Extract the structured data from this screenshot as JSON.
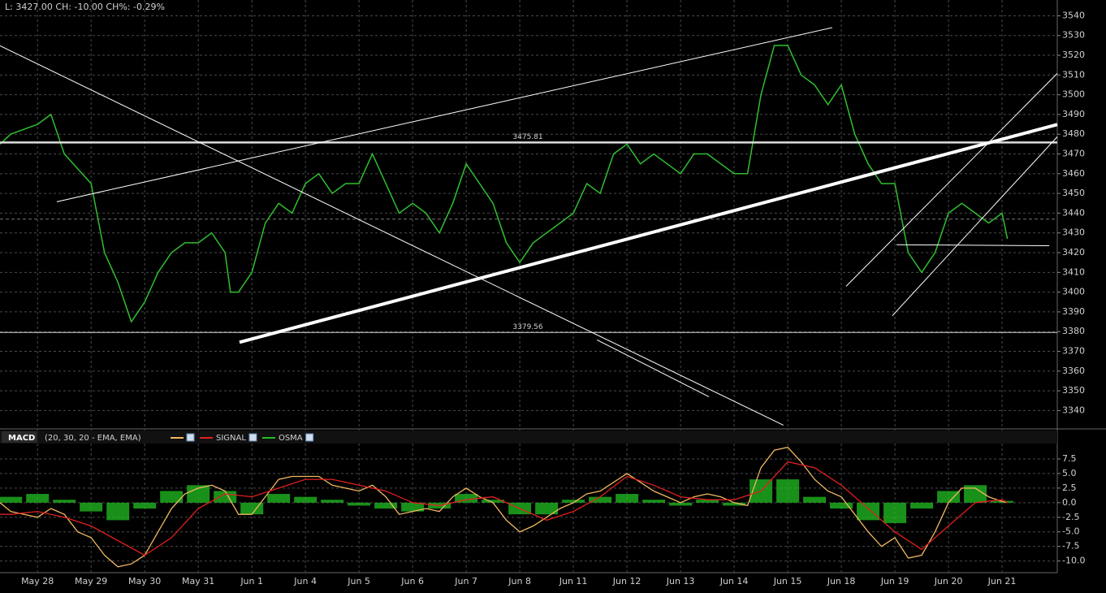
{
  "header": {
    "quote": "L: 3427.00 CH: -10.00 CH%: -0.29%"
  },
  "chart_data": [
    {
      "type": "line",
      "xlim": [
        -0.7,
        19.03
      ],
      "xticks": [
        {
          "value": 0,
          "label": "May 28"
        },
        {
          "value": 1,
          "label": "May 29"
        },
        {
          "value": 2,
          "label": "May 30"
        },
        {
          "value": 3,
          "label": "May 31"
        },
        {
          "value": 4,
          "label": "Jun 1"
        },
        {
          "value": 5,
          "label": "Jun 4"
        },
        {
          "value": 6,
          "label": "Jun 5"
        },
        {
          "value": 7,
          "label": "Jun 6"
        },
        {
          "value": 8,
          "label": "Jun 7"
        },
        {
          "value": 9,
          "label": "Jun 8"
        },
        {
          "value": 10,
          "label": "Jun 11"
        },
        {
          "value": 11,
          "label": "Jun 12"
        },
        {
          "value": 12,
          "label": "Jun 13"
        },
        {
          "value": 13,
          "label": "Jun 14"
        },
        {
          "value": 14,
          "label": "Jun 15"
        },
        {
          "value": 15,
          "label": "Jun 18"
        },
        {
          "value": 16,
          "label": "Jun 19"
        },
        {
          "value": 17,
          "label": "Jun 20"
        },
        {
          "value": 18,
          "label": "Jun 21"
        }
      ],
      "ylim": [
        3334,
        3548
      ],
      "yticks": [
        3340,
        3350,
        3360,
        3370,
        3380,
        3390,
        3400,
        3410,
        3420,
        3430,
        3440,
        3450,
        3460,
        3470,
        3480,
        3490,
        3500,
        3510,
        3520,
        3530,
        3540
      ],
      "grid": true,
      "series": [
        {
          "color": "#2fbf2f",
          "x": [
            -0.7,
            -0.5,
            0,
            0.25,
            0.5,
            1,
            1.25,
            1.5,
            1.75,
            2,
            2.25,
            2.5,
            2.75,
            3,
            3.25,
            3.5,
            3.6,
            3.75,
            4,
            4.25,
            4.5,
            4.75,
            5,
            5.25,
            5.5,
            5.75,
            6,
            6.25,
            6.5,
            6.75,
            7,
            7.25,
            7.5,
            7.75,
            8,
            8.25,
            8.5,
            8.75,
            9,
            9.25,
            9.5,
            9.75,
            10,
            10.25,
            10.5,
            10.75,
            11,
            11.25,
            11.5,
            11.75,
            12,
            12.25,
            12.5,
            12.75,
            13,
            13.25,
            13.5,
            13.75,
            14,
            14.25,
            14.5,
            14.75,
            15,
            15.25,
            15.5,
            15.75,
            16,
            16.25,
            16.5,
            16.75,
            17,
            17.25,
            17.5,
            17.75,
            18,
            18.1
          ],
          "values": [
            3475,
            3480,
            3485,
            3490,
            3470,
            3455,
            3420,
            3405,
            3385,
            3395,
            3410,
            3420,
            3425,
            3425,
            3430,
            3420,
            3400,
            3400,
            3410,
            3435,
            3445,
            3440,
            3455,
            3460,
            3450,
            3455,
            3455,
            3470,
            3455,
            3440,
            3445,
            3440,
            3430,
            3445,
            3465,
            3455,
            3445,
            3425,
            3415,
            3425,
            3430,
            3435,
            3440,
            3455,
            3450,
            3470,
            3475,
            3465,
            3470,
            3465,
            3460,
            3470,
            3470,
            3465,
            3460,
            3460,
            3500,
            3525,
            3525,
            3510,
            3505,
            3495,
            3505,
            3480,
            3465,
            3455,
            3455,
            3420,
            3410,
            3420,
            3440,
            3445,
            3440,
            3435,
            3440,
            3427
          ]
        }
      ],
      "hlines": [
        3475.81,
        3379.56
      ],
      "reference_line": 3437,
      "trendlines": [
        {
          "x": [
            0.36,
            14.83
          ],
          "y": [
            3445.8,
            3534
          ]
        },
        {
          "x": [
            3.77,
            19.03
          ],
          "y": [
            3374.6,
            3484.9
          ],
          "bold": true
        },
        {
          "x": [
            -0.7,
            13.92
          ],
          "y": [
            3524.8,
            3332.6
          ]
        },
        {
          "x": [
            10.44,
            12.53
          ],
          "y": [
            3375.8,
            3347
          ]
        },
        {
          "x": [
            15.09,
            19.03
          ],
          "y": [
            3403,
            3510.8
          ]
        },
        {
          "x": [
            15.95,
            19.03
          ],
          "y": [
            3388,
            3478.7
          ]
        },
        {
          "x": [
            16.03,
            18.88
          ],
          "y": [
            3424,
            3423.5
          ]
        }
      ]
    },
    {
      "type": "macd",
      "title": "MACD",
      "params": "(20, 30, 20 - EMA, EMA)",
      "xlim": [
        -0.7,
        19.03
      ],
      "ylim": [
        -12,
        10
      ],
      "yticks": [
        7.5,
        {
          "value": 5,
          "label": "5.0"
        },
        2.5,
        {
          "value": 0,
          "label": "0.0"
        },
        -2.5,
        {
          "value": -5,
          "label": "-5.0"
        },
        -7.5,
        {
          "value": -10,
          "label": "-10.0"
        }
      ],
      "series": [
        {
          "color": "#f0b860",
          "type": "line",
          "x": [
            -0.7,
            -0.5,
            0,
            0.25,
            0.5,
            0.75,
            1,
            1.25,
            1.5,
            1.75,
            2,
            2.25,
            2.5,
            2.75,
            3,
            3.25,
            3.5,
            3.75,
            4,
            4.25,
            4.5,
            4.75,
            5,
            5.25,
            5.5,
            5.75,
            6,
            6.25,
            6.5,
            6.75,
            7,
            7.25,
            7.5,
            7.75,
            8,
            8.25,
            8.5,
            8.75,
            9,
            9.25,
            9.5,
            9.75,
            10,
            10.25,
            10.5,
            10.75,
            11,
            11.25,
            11.5,
            11.75,
            12,
            12.25,
            12.5,
            12.75,
            13,
            13.25,
            13.5,
            13.75,
            14,
            14.25,
            14.5,
            14.75,
            15,
            15.25,
            15.5,
            15.75,
            16,
            16.25,
            16.5,
            16.75,
            17,
            17.25,
            17.5,
            17.75,
            18,
            18.1
          ],
          "values": [
            0,
            -1.5,
            -2.5,
            -1,
            -2,
            -5,
            -6,
            -9,
            -11,
            -10.5,
            -9,
            -5,
            -1,
            1.5,
            2.5,
            3,
            2,
            -2,
            -2,
            1,
            4,
            4.5,
            4.5,
            4.5,
            3,
            2.5,
            2,
            3,
            1,
            -2,
            -1.5,
            -1,
            -1.5,
            1,
            2.5,
            1,
            0,
            -3,
            -5,
            -4,
            -2.5,
            -1,
            0,
            1.5,
            2,
            3.5,
            5,
            3.5,
            2,
            1,
            0,
            1,
            1.5,
            1,
            0,
            -0.5,
            6,
            9,
            9.5,
            7,
            4,
            2,
            1,
            -2,
            -5,
            -7.5,
            -6,
            -9.5,
            -9,
            -5,
            0,
            2.5,
            2.5,
            1,
            0.2,
            0
          ]
        },
        {
          "name": "SIGNAL",
          "color": "#e02020",
          "type": "line",
          "x": [
            -0.7,
            -0.5,
            0,
            0.5,
            1,
            1.5,
            2,
            2.5,
            3,
            3.5,
            4,
            4.5,
            5,
            5.5,
            6,
            6.5,
            7,
            7.5,
            8,
            8.5,
            9,
            9.5,
            10,
            10.5,
            11,
            11.5,
            12,
            12.5,
            13,
            13.5,
            14,
            14.5,
            15,
            15.5,
            16,
            16.5,
            17,
            17.5,
            18,
            18.1
          ],
          "values": [
            -2,
            -2,
            -1.5,
            -2.5,
            -4,
            -6.5,
            -9,
            -6,
            -1,
            1.5,
            1,
            2.5,
            4,
            4,
            3,
            2,
            0,
            -0.5,
            0.5,
            1,
            -1,
            -3,
            -1.5,
            1,
            4.5,
            3,
            1,
            0.5,
            0.5,
            2,
            7,
            6,
            3,
            -1,
            -5,
            -8,
            -4,
            0,
            0.5,
            0
          ]
        },
        {
          "name": "OSMA",
          "color": "#22c022",
          "type": "bar",
          "x": [
            -0.5,
            0,
            0.5,
            1,
            1.5,
            2,
            2.5,
            3,
            3.5,
            4,
            4.5,
            5,
            5.5,
            6,
            6.5,
            7,
            7.5,
            8,
            8.5,
            9,
            9.5,
            10,
            10.5,
            11,
            11.5,
            12,
            12.5,
            13,
            13.5,
            14,
            14.5,
            15,
            15.5,
            16,
            16.5,
            17,
            17.5,
            18
          ],
          "values": [
            1,
            1.5,
            0.5,
            -1.5,
            -3,
            -1,
            2,
            3,
            2,
            -2,
            1.5,
            1,
            0.5,
            -0.5,
            -1,
            -1.5,
            -1,
            1.5,
            0.5,
            -2,
            -2,
            0.5,
            1,
            1.5,
            0.5,
            -0.5,
            0.5,
            -0.5,
            4,
            4,
            1,
            -1,
            -3,
            -3.5,
            -1,
            2,
            3,
            0.3
          ]
        }
      ]
    }
  ]
}
